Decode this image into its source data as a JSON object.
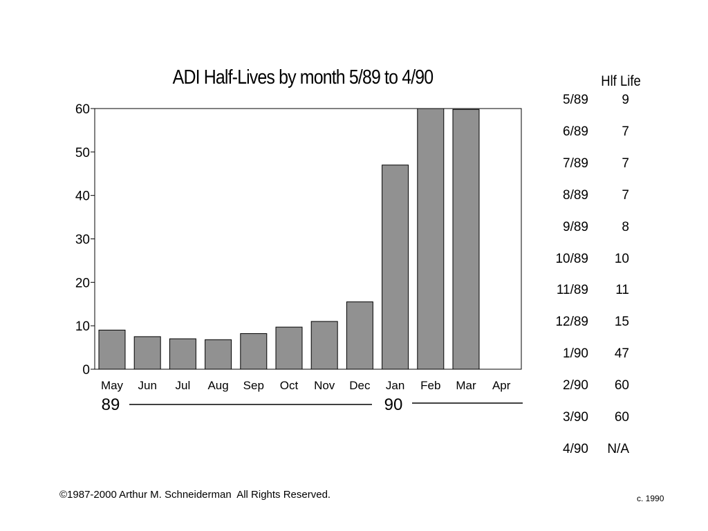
{
  "chart_data": {
    "type": "bar",
    "title": "ADI Half-Lives by month 5/89 to 4/90",
    "categories": [
      "May",
      "Jun",
      "Jul",
      "Aug",
      "Sep",
      "Oct",
      "Nov",
      "Dec",
      "Jan",
      "Feb",
      "Mar",
      "Apr"
    ],
    "values": [
      9,
      7.5,
      7,
      6.8,
      8.2,
      9.7,
      11,
      15.5,
      47,
      60,
      59.8,
      null
    ],
    "ylim": [
      0,
      60
    ],
    "yticks": [
      0,
      10,
      20,
      30,
      40,
      50,
      60
    ],
    "xlabel": "",
    "ylabel": "",
    "year_labels": [
      "89",
      "90"
    ],
    "bar_color": "#919191",
    "grid": false
  },
  "table": {
    "header": "Hlf Life",
    "rows": [
      {
        "month": "5/89",
        "value": "9"
      },
      {
        "month": "6/89",
        "value": "7"
      },
      {
        "month": "7/89",
        "value": "7"
      },
      {
        "month": "8/89",
        "value": "7"
      },
      {
        "month": "9/89",
        "value": "8"
      },
      {
        "month": "10/89",
        "value": "10"
      },
      {
        "month": "11/89",
        "value": "11"
      },
      {
        "month": "12/89",
        "value": "15"
      },
      {
        "month": "1/90",
        "value": "47"
      },
      {
        "month": "2/90",
        "value": "60"
      },
      {
        "month": "3/90",
        "value": "60"
      },
      {
        "month": "4/90",
        "value": "N/A"
      }
    ]
  },
  "footer": {
    "copyright": "©1987-2000 Arthur M. Schneiderman  All Rights Reserved.",
    "date_note": "c. 1990"
  }
}
